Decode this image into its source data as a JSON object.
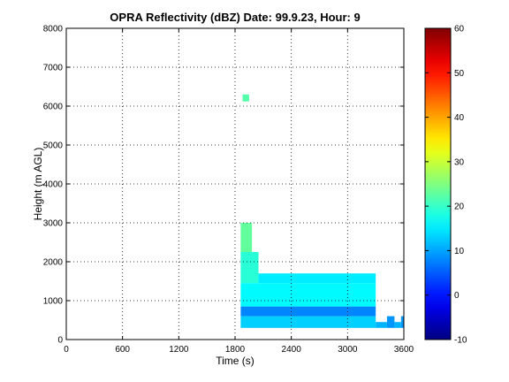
{
  "chart_data": {
    "type": "heatmap",
    "title": "OPRA Reflectivity (dBZ)  Date: 99.9.23, Hour: 9",
    "xlabel": "Time (s)",
    "ylabel": "Height (m AGL)",
    "xlim": [
      0,
      3600
    ],
    "ylim": [
      0,
      8000
    ],
    "xticks": [
      0,
      600,
      1200,
      1800,
      2400,
      3000,
      3600
    ],
    "yticks": [
      0,
      1000,
      2000,
      3000,
      4000,
      5000,
      6000,
      7000,
      8000
    ],
    "grid": true,
    "colorbar": {
      "label_units": "dBZ",
      "range": [
        -10,
        60
      ],
      "ticks": [
        -10,
        0,
        10,
        20,
        30,
        40,
        50,
        60
      ],
      "colormap": "jet"
    },
    "echo_regions": [
      {
        "t": [
          1880,
          1950
        ],
        "h": [
          6120,
          6300
        ],
        "dbz": 22
      },
      {
        "t": [
          1860,
          3300
        ],
        "h": [
          300,
          600
        ],
        "dbz": 13
      },
      {
        "t": [
          1860,
          3300
        ],
        "h": [
          600,
          850
        ],
        "dbz": 8
      },
      {
        "t": [
          1860,
          3300
        ],
        "h": [
          850,
          1450
        ],
        "dbz": 16
      },
      {
        "t": [
          1860,
          2050
        ],
        "h": [
          1450,
          2250
        ],
        "dbz": 19
      },
      {
        "t": [
          1860,
          1980
        ],
        "h": [
          2250,
          3000
        ],
        "dbz": 23
      },
      {
        "t": [
          2050,
          3300
        ],
        "h": [
          1450,
          1700
        ],
        "dbz": 15
      },
      {
        "t": [
          3300,
          3420
        ],
        "h": [
          300,
          450
        ],
        "dbz": 11
      },
      {
        "t": [
          3420,
          3500
        ],
        "h": [
          300,
          600
        ],
        "dbz": 9
      },
      {
        "t": [
          3500,
          3570
        ],
        "h": [
          300,
          450
        ],
        "dbz": 11
      },
      {
        "t": [
          3570,
          3600
        ],
        "h": [
          300,
          600
        ],
        "dbz": 9
      }
    ]
  }
}
